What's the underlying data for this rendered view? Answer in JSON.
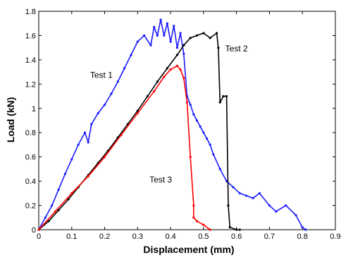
{
  "chart_data": {
    "type": "line",
    "title": "",
    "xlabel": "Displacement (mm)",
    "ylabel": "Load (kN)",
    "xlim": [
      0,
      0.9
    ],
    "ylim": [
      0,
      1.8
    ],
    "x_ticks": [
      0,
      0.1,
      0.2,
      0.3,
      0.4,
      0.5,
      0.6,
      0.7,
      0.8,
      0.9
    ],
    "y_ticks": [
      0,
      0.2,
      0.4,
      0.6,
      0.8,
      1,
      1.2,
      1.4,
      1.6,
      1.8
    ],
    "x_tick_labels": [
      "0",
      "0.1",
      "0.2",
      "0.3",
      "0.4",
      "0.5",
      "0.6",
      "0.7",
      "0.8",
      "0.9"
    ],
    "y_tick_labels": [
      "0",
      "0.2",
      "0.4",
      "0.6",
      "0.8",
      "1",
      "1.2",
      "1.4",
      "1.6",
      "1.8"
    ],
    "grid": false,
    "legend": "none",
    "series": [
      {
        "name": "Test 1",
        "color": "#1a1aff",
        "x": [
          0,
          0.02,
          0.04,
          0.06,
          0.08,
          0.1,
          0.12,
          0.14,
          0.15,
          0.16,
          0.18,
          0.2,
          0.22,
          0.24,
          0.26,
          0.28,
          0.3,
          0.32,
          0.34,
          0.35,
          0.36,
          0.37,
          0.38,
          0.39,
          0.4,
          0.41,
          0.42,
          0.43,
          0.44,
          0.45,
          0.46,
          0.47,
          0.48,
          0.49,
          0.5,
          0.51,
          0.52,
          0.53,
          0.55,
          0.57,
          0.59,
          0.61,
          0.63,
          0.65,
          0.67,
          0.7,
          0.72,
          0.75,
          0.78,
          0.8,
          0.81
        ],
        "y": [
          0,
          0.1,
          0.2,
          0.33,
          0.46,
          0.58,
          0.7,
          0.8,
          0.72,
          0.87,
          0.96,
          1.03,
          1.12,
          1.22,
          1.33,
          1.44,
          1.55,
          1.6,
          1.52,
          1.67,
          1.6,
          1.73,
          1.6,
          1.7,
          1.55,
          1.68,
          1.5,
          1.62,
          1.45,
          1.1,
          1.03,
          0.95,
          0.9,
          0.85,
          0.8,
          0.75,
          0.7,
          0.62,
          0.5,
          0.4,
          0.35,
          0.3,
          0.28,
          0.26,
          0.3,
          0.2,
          0.15,
          0.2,
          0.12,
          0.02,
          0
        ]
      },
      {
        "name": "Test 2",
        "color": "#000000",
        "x": [
          0,
          0.03,
          0.06,
          0.09,
          0.12,
          0.15,
          0.18,
          0.21,
          0.24,
          0.27,
          0.3,
          0.33,
          0.36,
          0.39,
          0.42,
          0.44,
          0.46,
          0.48,
          0.5,
          0.52,
          0.54,
          0.545,
          0.55,
          0.56,
          0.57,
          0.575,
          0.58,
          0.6,
          0.61
        ],
        "y": [
          0,
          0.07,
          0.16,
          0.25,
          0.35,
          0.45,
          0.55,
          0.65,
          0.76,
          0.87,
          0.98,
          1.1,
          1.22,
          1.33,
          1.44,
          1.52,
          1.58,
          1.6,
          1.62,
          1.58,
          1.62,
          1.5,
          1.05,
          1.1,
          1.1,
          0.2,
          0.02,
          0,
          0
        ]
      },
      {
        "name": "Test 3",
        "color": "#ff0000",
        "x": [
          0,
          0.05,
          0.1,
          0.15,
          0.2,
          0.25,
          0.3,
          0.35,
          0.38,
          0.4,
          0.42,
          0.43,
          0.44,
          0.45,
          0.46,
          0.47,
          0.47,
          0.48,
          0.5,
          0.52
        ],
        "y": [
          0,
          0.15,
          0.3,
          0.44,
          0.6,
          0.78,
          0.96,
          1.14,
          1.26,
          1.32,
          1.35,
          1.32,
          1.25,
          1.05,
          0.6,
          0.2,
          0.1,
          0.07,
          0.04,
          0
        ]
      }
    ],
    "annotations": [
      {
        "text": "Test 1",
        "x": 0.19,
        "y": 1.25
      },
      {
        "text": "Test 2",
        "x": 0.6,
        "y": 1.47
      },
      {
        "text": "Test 3",
        "x": 0.37,
        "y": 0.39
      }
    ]
  }
}
